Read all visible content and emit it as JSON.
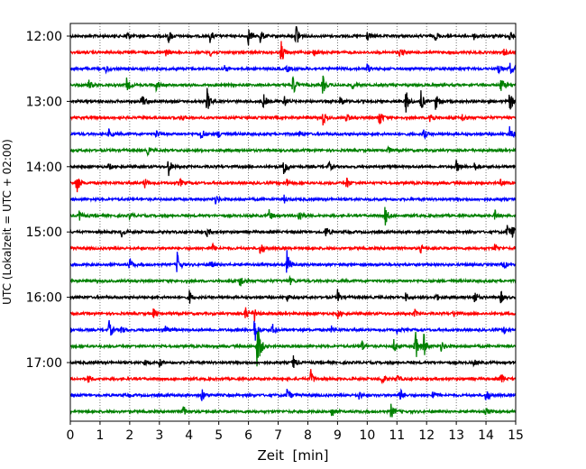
{
  "chart_data": {
    "type": "line",
    "title": "",
    "xlabel": "Zeit  [min]",
    "ylabel": "UTC (Lokalzeit = UTC + 02:00)",
    "xlim": [
      0,
      15
    ],
    "x_ticks": [
      "0",
      "1",
      "2",
      "3",
      "4",
      "5",
      "6",
      "7",
      "8",
      "9",
      "10",
      "11",
      "12",
      "13",
      "14",
      "15"
    ],
    "y_ticks": [
      {
        "label": "12:00",
        "row": 0
      },
      {
        "label": "13:00",
        "row": 4
      },
      {
        "label": "14:00",
        "row": 8
      },
      {
        "label": "15:00",
        "row": 12
      },
      {
        "label": "16:00",
        "row": 16
      },
      {
        "label": "17:00",
        "row": 20
      }
    ],
    "grid": "vertical dotted at each minute",
    "trace_colors": [
      "#000000",
      "#ff0000",
      "#0000ff",
      "#008000"
    ],
    "rows": [
      {
        "start": "12:00",
        "color": "#000000",
        "events": [
          [
            1.9,
            0.5
          ],
          [
            3.3,
            0.6
          ],
          [
            4.7,
            0.5
          ],
          [
            6.0,
            0.7
          ],
          [
            6.4,
            0.6
          ],
          [
            7.6,
            1.2
          ],
          [
            10.0,
            0.4
          ],
          [
            12.3,
            0.4
          ],
          [
            13.6,
            0.3
          ],
          [
            14.8,
            0.5
          ]
        ]
      },
      {
        "start": "12:15",
        "color": "#ff0000",
        "events": [
          [
            3.2,
            0.3
          ],
          [
            4.7,
            0.3
          ],
          [
            7.1,
            1.0
          ],
          [
            8.2,
            0.3
          ],
          [
            11.1,
            0.4
          ],
          [
            14.6,
            0.3
          ]
        ]
      },
      {
        "start": "12:30",
        "color": "#0000ff",
        "events": [
          [
            1.2,
            0.3
          ],
          [
            5.2,
            0.3
          ],
          [
            7.3,
            0.3
          ],
          [
            10.0,
            0.4
          ],
          [
            14.4,
            0.5
          ],
          [
            14.8,
            0.5
          ]
        ]
      },
      {
        "start": "12:45",
        "color": "#008000",
        "events": [
          [
            0.6,
            0.5
          ],
          [
            1.9,
            0.6
          ],
          [
            2.9,
            0.5
          ],
          [
            7.5,
            1.0
          ],
          [
            8.5,
            0.8
          ],
          [
            9.5,
            0.3
          ],
          [
            14.5,
            0.6
          ]
        ]
      },
      {
        "start": "13:00",
        "color": "#000000",
        "events": [
          [
            2.4,
            0.7
          ],
          [
            4.6,
            1.1
          ],
          [
            6.5,
            0.6
          ],
          [
            7.2,
            0.5
          ],
          [
            9.1,
            0.5
          ],
          [
            11.3,
            1.0
          ],
          [
            11.8,
            0.9
          ],
          [
            12.3,
            0.7
          ],
          [
            14.8,
            0.8
          ]
        ]
      },
      {
        "start": "13:15",
        "color": "#ff0000",
        "events": [
          [
            3.7,
            0.3
          ],
          [
            8.5,
            0.6
          ],
          [
            9.3,
            0.4
          ],
          [
            10.4,
            0.8
          ],
          [
            12.1,
            0.7
          ],
          [
            13.2,
            0.3
          ]
        ]
      },
      {
        "start": "13:30",
        "color": "#0000ff",
        "events": [
          [
            1.3,
            0.4
          ],
          [
            2.9,
            0.4
          ],
          [
            4.4,
            0.6
          ],
          [
            5.0,
            0.3
          ],
          [
            7.7,
            0.3
          ],
          [
            11.9,
            0.4
          ],
          [
            14.8,
            0.7
          ]
        ]
      },
      {
        "start": "13:45",
        "color": "#008000",
        "events": [
          [
            2.6,
            0.3
          ],
          [
            10.7,
            0.3
          ]
        ]
      },
      {
        "start": "14:00",
        "color": "#000000",
        "events": [
          [
            1.3,
            0.3
          ],
          [
            3.3,
            0.8
          ],
          [
            7.2,
            0.9
          ],
          [
            8.7,
            0.4
          ],
          [
            13.0,
            0.5
          ],
          [
            13.6,
            0.4
          ]
        ]
      },
      {
        "start": "14:15",
        "color": "#ff0000",
        "events": [
          [
            0.2,
            1.0
          ],
          [
            2.5,
            0.4
          ],
          [
            3.7,
            0.3
          ],
          [
            7.3,
            0.3
          ],
          [
            9.3,
            0.5
          ],
          [
            14.5,
            0.3
          ]
        ]
      },
      {
        "start": "14:30",
        "color": "#0000ff",
        "events": [
          [
            4.9,
            0.4
          ],
          [
            7.2,
            0.3
          ]
        ]
      },
      {
        "start": "14:45",
        "color": "#008000",
        "events": [
          [
            0.3,
            0.4
          ],
          [
            2.0,
            0.3
          ],
          [
            6.7,
            0.5
          ],
          [
            7.7,
            0.7
          ],
          [
            10.6,
            0.8
          ],
          [
            14.3,
            0.4
          ]
        ]
      },
      {
        "start": "15:00",
        "color": "#000000",
        "events": [
          [
            1.7,
            0.5
          ],
          [
            4.6,
            0.4
          ],
          [
            8.6,
            0.5
          ],
          [
            14.7,
            0.7
          ],
          [
            14.9,
            0.6
          ]
        ]
      },
      {
        "start": "15:15",
        "color": "#ff0000",
        "events": [
          [
            4.8,
            0.3
          ],
          [
            6.4,
            0.6
          ],
          [
            11.8,
            0.3
          ],
          [
            14.3,
            0.4
          ]
        ]
      },
      {
        "start": "15:30",
        "color": "#0000ff",
        "events": [
          [
            2.0,
            0.5
          ],
          [
            3.6,
            1.0
          ],
          [
            4.7,
            0.4
          ],
          [
            7.3,
            1.2
          ],
          [
            14.6,
            0.3
          ]
        ]
      },
      {
        "start": "15:45",
        "color": "#008000",
        "events": [
          [
            5.7,
            0.7
          ],
          [
            7.4,
            0.3
          ]
        ]
      },
      {
        "start": "16:00",
        "color": "#000000",
        "events": [
          [
            4.0,
            0.6
          ],
          [
            7.3,
            0.3
          ],
          [
            9.0,
            0.6
          ],
          [
            11.3,
            0.4
          ],
          [
            12.3,
            0.4
          ],
          [
            13.6,
            0.6
          ],
          [
            14.5,
            0.5
          ]
        ]
      },
      {
        "start": "16:15",
        "color": "#ff0000",
        "events": [
          [
            2.8,
            0.4
          ],
          [
            5.9,
            0.6
          ],
          [
            6.2,
            0.6
          ],
          [
            9.0,
            0.4
          ],
          [
            11.6,
            0.3
          ],
          [
            12.9,
            0.3
          ]
        ]
      },
      {
        "start": "16:30",
        "color": "#0000ff",
        "events": [
          [
            1.3,
            0.8
          ],
          [
            1.7,
            0.4
          ],
          [
            3.2,
            0.4
          ],
          [
            6.2,
            1.2
          ],
          [
            6.8,
            0.5
          ],
          [
            8.8,
            0.3
          ],
          [
            11.0,
            0.3
          ],
          [
            14.6,
            0.3
          ]
        ]
      },
      {
        "start": "16:45",
        "color": "#008000",
        "events": [
          [
            6.3,
            2.5
          ],
          [
            9.8,
            0.6
          ],
          [
            10.9,
            0.6
          ],
          [
            11.6,
            1.6
          ],
          [
            11.9,
            1.0
          ],
          [
            12.5,
            0.5
          ]
        ]
      },
      {
        "start": "17:00",
        "color": "#000000",
        "events": [
          [
            2.5,
            0.3
          ],
          [
            3.0,
            0.3
          ],
          [
            7.5,
            0.6
          ],
          [
            13.6,
            0.3
          ]
        ]
      },
      {
        "start": "17:15",
        "color": "#ff0000",
        "events": [
          [
            0.6,
            0.4
          ],
          [
            8.1,
            0.7
          ],
          [
            10.5,
            0.4
          ],
          [
            11.0,
            0.4
          ],
          [
            14.5,
            0.5
          ]
        ]
      },
      {
        "start": "17:30",
        "color": "#0000ff",
        "events": [
          [
            4.4,
            0.7
          ],
          [
            7.3,
            0.6
          ],
          [
            9.7,
            0.4
          ],
          [
            11.1,
            0.6
          ],
          [
            12.2,
            0.4
          ],
          [
            14.0,
            0.6
          ]
        ]
      },
      {
        "start": "17:45",
        "color": "#008000",
        "events": [
          [
            3.8,
            0.5
          ],
          [
            8.8,
            0.5
          ],
          [
            10.8,
            0.6
          ],
          [
            14.0,
            0.3
          ]
        ]
      }
    ]
  }
}
